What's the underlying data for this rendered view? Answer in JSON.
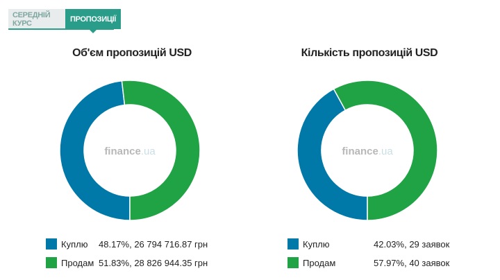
{
  "tabs": [
    {
      "label": "СЕРЕДНІЙ КУРС",
      "active": false
    },
    {
      "label": "ПРОПОЗИЦІЇ",
      "active": true
    }
  ],
  "watermark": {
    "brand": "finance",
    "tld": ".ua"
  },
  "colors": {
    "buy": "#0079a9",
    "sell": "#1fa344",
    "accent": "#2a9d8a",
    "watermark": "#cfcfcf"
  },
  "chart_data": [
    {
      "type": "pie",
      "title": "Об'єм пропозицій USD",
      "series": [
        {
          "name": "Куплю",
          "percent": 48.17,
          "value_text": "48.17%, 26 794 716.87 грн"
        },
        {
          "name": "Продам",
          "percent": 51.83,
          "value_text": "51.83%, 28 826 944.35 грн"
        }
      ]
    },
    {
      "type": "pie",
      "title": "Кількість пропозицій USD",
      "series": [
        {
          "name": "Куплю",
          "percent": 42.03,
          "value_text": "42.03%, 29 заявок"
        },
        {
          "name": "Продам",
          "percent": 57.97,
          "value_text": "57.97%, 40 заявок"
        }
      ]
    }
  ]
}
